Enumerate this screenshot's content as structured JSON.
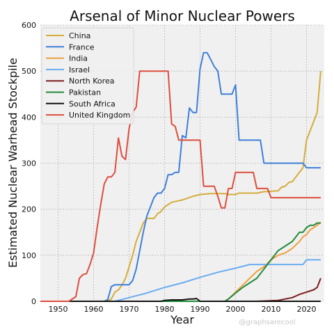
{
  "chart_data": {
    "type": "line",
    "title": "Arsenal of Minor Nuclear Powers",
    "xlabel": "Year",
    "ylabel": "Estimated Nuclear Warhead Stockpile",
    "xlim": [
      1945,
      2025
    ],
    "ylim": [
      0,
      600
    ],
    "xticks": [
      1950,
      1960,
      1970,
      1980,
      1990,
      2000,
      2010,
      2020
    ],
    "yticks": [
      0,
      100,
      200,
      300,
      400,
      500,
      600
    ],
    "grid": true,
    "legend_position": "top-left",
    "watermark": "@graphsarecool",
    "series": [
      {
        "name": "China",
        "color": "#d4ac3a",
        "points": [
          [
            1945,
            0
          ],
          [
            1963,
            0
          ],
          [
            1964,
            1
          ],
          [
            1965,
            5
          ],
          [
            1966,
            20
          ],
          [
            1967,
            25
          ],
          [
            1968,
            35
          ],
          [
            1969,
            50
          ],
          [
            1970,
            75
          ],
          [
            1971,
            100
          ],
          [
            1972,
            130
          ],
          [
            1973,
            150
          ],
          [
            1974,
            170
          ],
          [
            1975,
            180
          ],
          [
            1977,
            180
          ],
          [
            1978,
            190
          ],
          [
            1979,
            195
          ],
          [
            1980,
            205
          ],
          [
            1981,
            210
          ],
          [
            1982,
            215
          ],
          [
            1985,
            220
          ],
          [
            1988,
            228
          ],
          [
            1990,
            232
          ],
          [
            1993,
            234
          ],
          [
            1997,
            234
          ],
          [
            1998,
            232
          ],
          [
            2000,
            232
          ],
          [
            2001,
            235
          ],
          [
            2006,
            235
          ],
          [
            2008,
            238
          ],
          [
            2012,
            240
          ],
          [
            2013,
            248
          ],
          [
            2014,
            250
          ],
          [
            2015,
            258
          ],
          [
            2016,
            260
          ],
          [
            2017,
            270
          ],
          [
            2018,
            280
          ],
          [
            2019,
            290
          ],
          [
            2020,
            350
          ],
          [
            2021,
            370
          ],
          [
            2022,
            390
          ],
          [
            2023,
            410
          ],
          [
            2024,
            500
          ]
        ]
      },
      {
        "name": "France",
        "color": "#3d7fd8",
        "points": [
          [
            1945,
            0
          ],
          [
            1963,
            0
          ],
          [
            1964,
            4
          ],
          [
            1965,
            32
          ],
          [
            1966,
            36
          ],
          [
            1970,
            36
          ],
          [
            1971,
            45
          ],
          [
            1972,
            70
          ],
          [
            1973,
            110
          ],
          [
            1974,
            150
          ],
          [
            1975,
            185
          ],
          [
            1976,
            205
          ],
          [
            1977,
            225
          ],
          [
            1978,
            235
          ],
          [
            1979,
            235
          ],
          [
            1980,
            245
          ],
          [
            1981,
            275
          ],
          [
            1982,
            275
          ],
          [
            1983,
            280
          ],
          [
            1984,
            280
          ],
          [
            1985,
            360
          ],
          [
            1986,
            355
          ],
          [
            1987,
            420
          ],
          [
            1988,
            410
          ],
          [
            1989,
            410
          ],
          [
            1990,
            505
          ],
          [
            1991,
            540
          ],
          [
            1992,
            540
          ],
          [
            1993,
            525
          ],
          [
            1994,
            510
          ],
          [
            1995,
            500
          ],
          [
            1996,
            450
          ],
          [
            1999,
            450
          ],
          [
            2000,
            470
          ],
          [
            2001,
            350
          ],
          [
            2007,
            350
          ],
          [
            2008,
            300
          ],
          [
            2019,
            300
          ],
          [
            2020,
            290
          ],
          [
            2024,
            290
          ]
        ]
      },
      {
        "name": "India",
        "color": "#f0a040",
        "points": [
          [
            1945,
            0
          ],
          [
            1997,
            0
          ],
          [
            1998,
            5
          ],
          [
            2000,
            20
          ],
          [
            2002,
            35
          ],
          [
            2004,
            50
          ],
          [
            2006,
            65
          ],
          [
            2008,
            75
          ],
          [
            2010,
            90
          ],
          [
            2012,
            100
          ],
          [
            2014,
            105
          ],
          [
            2016,
            115
          ],
          [
            2018,
            130
          ],
          [
            2019,
            140
          ],
          [
            2020,
            145
          ],
          [
            2021,
            155
          ],
          [
            2022,
            160
          ],
          [
            2023,
            165
          ],
          [
            2024,
            172
          ]
        ]
      },
      {
        "name": "Israel",
        "color": "#6aacf0",
        "points": [
          [
            1945,
            0
          ],
          [
            1966,
            0
          ],
          [
            1967,
            2
          ],
          [
            1970,
            8
          ],
          [
            1975,
            18
          ],
          [
            1980,
            30
          ],
          [
            1985,
            40
          ],
          [
            1990,
            52
          ],
          [
            1995,
            63
          ],
          [
            2000,
            72
          ],
          [
            2004,
            80
          ],
          [
            2019,
            80
          ],
          [
            2020,
            90
          ],
          [
            2024,
            90
          ]
        ]
      },
      {
        "name": "North Korea",
        "color": "#7a1c1c",
        "points": [
          [
            1945,
            0
          ],
          [
            2006,
            0
          ],
          [
            2012,
            2
          ],
          [
            2014,
            5
          ],
          [
            2016,
            8
          ],
          [
            2018,
            15
          ],
          [
            2020,
            20
          ],
          [
            2022,
            25
          ],
          [
            2023,
            30
          ],
          [
            2024,
            50
          ]
        ]
      },
      {
        "name": "Pakistan",
        "color": "#1f8a3a",
        "points": [
          [
            1945,
            0
          ],
          [
            1997,
            0
          ],
          [
            1998,
            5
          ],
          [
            2000,
            18
          ],
          [
            2002,
            30
          ],
          [
            2004,
            40
          ],
          [
            2006,
            50
          ],
          [
            2008,
            70
          ],
          [
            2010,
            90
          ],
          [
            2012,
            110
          ],
          [
            2014,
            120
          ],
          [
            2016,
            130
          ],
          [
            2018,
            150
          ],
          [
            2019,
            150
          ],
          [
            2020,
            160
          ],
          [
            2021,
            165
          ],
          [
            2022,
            165
          ],
          [
            2023,
            170
          ],
          [
            2024,
            170
          ]
        ]
      },
      {
        "name": "South Africa",
        "color": "#111111",
        "points": [
          [
            1945,
            0
          ],
          [
            1979,
            0
          ],
          [
            1980,
            2
          ],
          [
            1982,
            3
          ],
          [
            1985,
            3
          ],
          [
            1987,
            5
          ],
          [
            1988,
            5
          ],
          [
            1989,
            6
          ],
          [
            1990,
            0
          ],
          [
            2024,
            0
          ]
        ]
      },
      {
        "name": "United Kingdom",
        "color": "#dd4d3c",
        "points": [
          [
            1945,
            0
          ],
          [
            1953,
            0
          ],
          [
            1955,
            10
          ],
          [
            1956,
            50
          ],
          [
            1957,
            58
          ],
          [
            1958,
            60
          ],
          [
            1959,
            80
          ],
          [
            1960,
            105
          ],
          [
            1961,
            160
          ],
          [
            1962,
            210
          ],
          [
            1963,
            255
          ],
          [
            1964,
            270
          ],
          [
            1965,
            270
          ],
          [
            1966,
            280
          ],
          [
            1967,
            355
          ],
          [
            1968,
            315
          ],
          [
            1969,
            308
          ],
          [
            1970,
            375
          ],
          [
            1971,
            410
          ],
          [
            1972,
            422
          ],
          [
            1973,
            500
          ],
          [
            1981,
            500
          ],
          [
            1982,
            385
          ],
          [
            1983,
            380
          ],
          [
            1984,
            350
          ],
          [
            1990,
            350
          ],
          [
            1991,
            250
          ],
          [
            1994,
            250
          ],
          [
            1995,
            228
          ],
          [
            1996,
            203
          ],
          [
            1997,
            203
          ],
          [
            1998,
            245
          ],
          [
            1999,
            245
          ],
          [
            2000,
            280
          ],
          [
            2005,
            280
          ],
          [
            2006,
            245
          ],
          [
            2009,
            245
          ],
          [
            2010,
            225
          ],
          [
            2024,
            225
          ]
        ]
      }
    ]
  }
}
